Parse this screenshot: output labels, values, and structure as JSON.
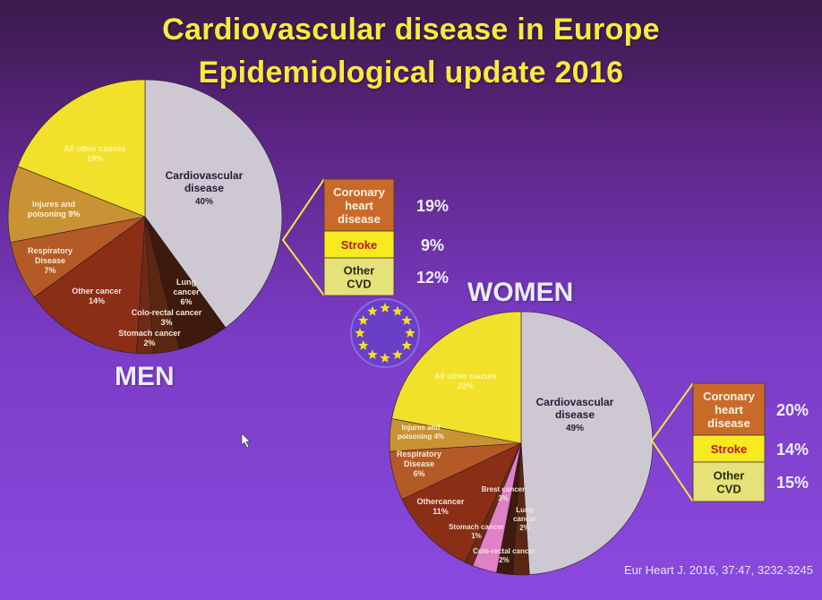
{
  "title": {
    "line1": "Cardiovascular disease in Europe",
    "line2": "Epidemiological update 2016"
  },
  "citation": "Eur Heart J. 2016, 37:47, 3232-3245",
  "men_label": "MEN",
  "women_label": "WOMEN",
  "colors": {
    "cardiovascular": "#cdc8d2",
    "lung": "#3d1a0c",
    "colorectal": "#5a2812",
    "stomach": "#6e2a14",
    "other_cancer": "#8a2e16",
    "respiratory": "#b45a26",
    "injuries": "#c99234",
    "all_other": "#f2e12a",
    "breast": "#e080c8",
    "box_chd": "#c96a2a",
    "box_stroke": "#f7ea1e",
    "box_other": "#e6e27a",
    "emblem": "#6a3fc8",
    "star": "#f4e21c"
  },
  "chart_data": [
    {
      "type": "pie",
      "name": "MEN",
      "slices": [
        {
          "label": "Cardiovascular disease",
          "value": 40,
          "display": "40%",
          "color_key": "cardiovascular"
        },
        {
          "label": "Lung cancer",
          "value": 6,
          "display": "6%",
          "color_key": "lung"
        },
        {
          "label": "Colo-rectal cancer",
          "value": 3,
          "display": "3%",
          "color_key": "colorectal"
        },
        {
          "label": "Stomach cancer",
          "value": 2,
          "display": "2%",
          "color_key": "stomach"
        },
        {
          "label": "Other cancer",
          "value": 14,
          "display": "14%",
          "color_key": "other_cancer"
        },
        {
          "label": "Respiratory Disease",
          "value": 7,
          "display": "7%",
          "color_key": "respiratory"
        },
        {
          "label": "Injures and poisoning",
          "value": 9,
          "display": "9%",
          "color_key": "injuries"
        },
        {
          "label": "All other causes",
          "value": 19,
          "display": "19%",
          "color_key": "all_other"
        }
      ],
      "cvd_breakdown": [
        {
          "label": "Coronary heart disease",
          "value": 19,
          "display": "19%"
        },
        {
          "label": "Stroke",
          "value": 9,
          "display": "9%"
        },
        {
          "label": "Other CVD",
          "value": 12,
          "display": "12%"
        }
      ]
    },
    {
      "type": "pie",
      "name": "WOMEN",
      "slices": [
        {
          "label": "Cardiovascular disease",
          "value": 49,
          "display": "49%",
          "color_key": "cardiovascular"
        },
        {
          "label": "Colo-rectal cancer",
          "value": 2,
          "display": "2%",
          "color_key": "colorectal"
        },
        {
          "label": "Lung cancer",
          "value": 2,
          "display": "2%",
          "color_key": "lung"
        },
        {
          "label": "Brest cancer",
          "value": 3,
          "display": "3%",
          "color_key": "breast"
        },
        {
          "label": "Stomach cancer",
          "value": 1,
          "display": "1%",
          "color_key": "stomach"
        },
        {
          "label": "Othercancer",
          "value": 11,
          "display": "11%",
          "color_key": "other_cancer"
        },
        {
          "label": "Respiratory Disease",
          "value": 6,
          "display": "6%",
          "color_key": "respiratory"
        },
        {
          "label": "Injures and poisoning",
          "value": 4,
          "display": "4%",
          "color_key": "injuries"
        },
        {
          "label": "All other causes",
          "value": 22,
          "display": "22%",
          "color_key": "all_other"
        }
      ],
      "cvd_breakdown": [
        {
          "label": "Coronary heart disease",
          "value": 20,
          "display": "20%"
        },
        {
          "label": "Stroke",
          "value": 14,
          "display": "14%"
        },
        {
          "label": "Other CVD",
          "value": 15,
          "display": "15%"
        }
      ]
    }
  ]
}
